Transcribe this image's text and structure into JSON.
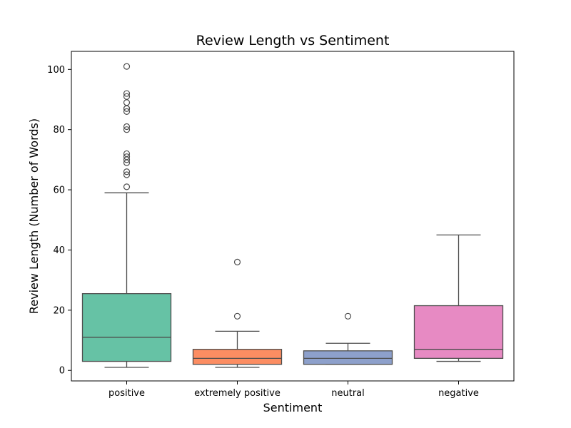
{
  "chart_data": {
    "type": "box",
    "title": "Review Length vs Sentiment",
    "xlabel": "Sentiment",
    "ylabel": "Review Length (Number of Words)",
    "ylim": [
      -3.5,
      106
    ],
    "yticks": [
      0,
      20,
      40,
      60,
      80,
      100
    ],
    "grid": false,
    "categories": [
      "positive",
      "extremely positive",
      "neutral",
      "negative"
    ],
    "colors": [
      "#66c2a5",
      "#fc8d62",
      "#8da0cb",
      "#e78ac3"
    ],
    "boxes": [
      {
        "min": 1,
        "q1": 3,
        "median": 11,
        "q3": 25.5,
        "max": 59,
        "outliers": [
          61,
          65,
          66,
          69,
          70,
          71,
          72,
          80,
          81,
          86,
          87,
          87,
          89,
          91,
          92,
          101
        ]
      },
      {
        "min": 1,
        "q1": 2,
        "median": 4,
        "q3": 7,
        "max": 13,
        "outliers": [
          18,
          36
        ]
      },
      {
        "min": 2,
        "q1": 2,
        "median": 4,
        "q3": 6.5,
        "max": 9,
        "outliers": [
          18
        ]
      },
      {
        "min": 3,
        "q1": 4,
        "median": 7,
        "q3": 21.5,
        "max": 45,
        "outliers": []
      }
    ]
  }
}
